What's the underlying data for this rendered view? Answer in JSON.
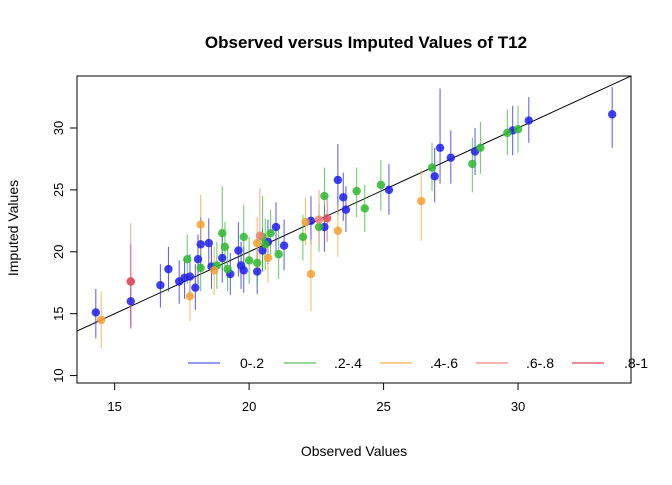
{
  "chart_data": {
    "type": "scatter",
    "title": "Observed versus Imputed Values of T12",
    "xlabel": "Observed Values",
    "ylabel": "Imputed Values",
    "xlim": [
      13.6,
      34.2
    ],
    "ylim": [
      9.4,
      34.2
    ],
    "xticks": [
      15,
      20,
      25,
      30
    ],
    "yticks": [
      10,
      15,
      20,
      25,
      30
    ],
    "reference_line": {
      "type": "identity",
      "slope": 1,
      "intercept": 0
    },
    "legend": {
      "position": "bottom",
      "entries": [
        {
          "label": "0-.2",
          "color": "#5a5af2"
        },
        {
          "label": ".2-.4",
          "color": "#5cc45c"
        },
        {
          "label": ".4-.6",
          "color": "#f7b14a"
        },
        {
          "label": ".6-.8",
          "color": "#f7837a"
        },
        {
          "label": ".8-1",
          "color": "#d9495c"
        }
      ]
    },
    "colors": {
      "g1": "#1f1ff0",
      "g2": "#2eb82e",
      "g3": "#f5a030",
      "g4": "#f28070",
      "g5": "#de4a5e"
    },
    "series": [
      {
        "name": "0-.2",
        "color_key": "g1",
        "points": [
          [
            14.3,
            15.1,
            13.0,
            17.0
          ],
          [
            15.6,
            16.0,
            14.0,
            18.0
          ],
          [
            16.7,
            17.3,
            15.5,
            19.0
          ],
          [
            17.0,
            18.6,
            16.8,
            20.4
          ],
          [
            17.4,
            17.6,
            15.8,
            19.3
          ],
          [
            17.6,
            17.9,
            16.2,
            19.5
          ],
          [
            17.8,
            18.0,
            16.3,
            19.8
          ],
          [
            18.0,
            17.1,
            15.3,
            19.0
          ],
          [
            18.1,
            19.4,
            17.4,
            21.4
          ],
          [
            18.2,
            20.6,
            18.4,
            22.8
          ],
          [
            18.5,
            20.7,
            18.8,
            22.7
          ],
          [
            18.6,
            18.8,
            17.0,
            20.5
          ],
          [
            19.0,
            19.5,
            17.5,
            21.7
          ],
          [
            19.3,
            18.2,
            16.5,
            19.9
          ],
          [
            19.6,
            20.1,
            18.0,
            22.4
          ],
          [
            19.7,
            18.9,
            17.0,
            20.8
          ],
          [
            19.8,
            18.5,
            16.7,
            20.4
          ],
          [
            20.3,
            18.4,
            16.6,
            20.3
          ],
          [
            20.5,
            20.1,
            18.4,
            21.9
          ],
          [
            20.7,
            20.8,
            19.0,
            22.6
          ],
          [
            21.0,
            22.0,
            20.0,
            24.0
          ],
          [
            21.3,
            20.5,
            18.5,
            22.6
          ],
          [
            22.3,
            22.5,
            20.6,
            24.5
          ],
          [
            22.8,
            22.0,
            20.0,
            23.8
          ],
          [
            23.3,
            25.8,
            23.0,
            28.7
          ],
          [
            23.5,
            24.4,
            22.5,
            26.4
          ],
          [
            23.6,
            23.4,
            21.6,
            25.3
          ],
          [
            25.2,
            25.0,
            23.0,
            27.1
          ],
          [
            26.9,
            26.1,
            24.0,
            28.4
          ],
          [
            27.1,
            28.4,
            25.5,
            33.2
          ],
          [
            27.5,
            27.6,
            25.5,
            29.8
          ],
          [
            28.4,
            28.1,
            26.2,
            30.0
          ],
          [
            29.8,
            29.8,
            27.8,
            31.8
          ],
          [
            30.4,
            30.6,
            28.8,
            32.5
          ],
          [
            33.5,
            31.1,
            28.4,
            33.3
          ]
        ]
      },
      {
        "name": ".2-.4",
        "color_key": "g2",
        "points": [
          [
            17.7,
            19.4,
            17.4,
            21.4
          ],
          [
            18.2,
            18.7,
            16.8,
            20.6
          ],
          [
            18.8,
            18.9,
            17.0,
            20.8
          ],
          [
            19.0,
            21.5,
            18.5,
            25.3
          ],
          [
            19.1,
            20.4,
            18.4,
            22.4
          ],
          [
            19.2,
            18.6,
            16.8,
            20.4
          ],
          [
            19.8,
            21.2,
            18.8,
            23.8
          ],
          [
            20.0,
            19.3,
            17.4,
            21.2
          ],
          [
            20.3,
            19.1,
            17.2,
            21.0
          ],
          [
            20.5,
            21.2,
            18.6,
            24.5
          ],
          [
            20.6,
            20.6,
            18.5,
            22.7
          ],
          [
            20.8,
            21.5,
            19.5,
            23.4
          ],
          [
            21.1,
            19.8,
            17.8,
            21.7
          ],
          [
            22.0,
            21.2,
            19.3,
            23.0
          ],
          [
            22.6,
            22.0,
            20.0,
            23.9
          ],
          [
            22.8,
            24.5,
            22.4,
            26.8
          ],
          [
            24.0,
            24.9,
            22.8,
            26.8
          ],
          [
            24.3,
            23.5,
            21.6,
            25.4
          ],
          [
            24.9,
            25.4,
            23.3,
            27.4
          ],
          [
            26.8,
            26.8,
            24.9,
            28.8
          ],
          [
            28.3,
            27.1,
            24.8,
            29.2
          ],
          [
            28.6,
            28.4,
            26.3,
            30.5
          ],
          [
            29.6,
            29.6,
            27.8,
            31.5
          ],
          [
            30.0,
            29.9,
            28.0,
            31.8
          ]
        ]
      },
      {
        "name": ".4-.6",
        "color_key": "g3",
        "points": [
          [
            14.5,
            14.5,
            12.2,
            16.8
          ],
          [
            17.8,
            16.4,
            14.4,
            18.4
          ],
          [
            18.2,
            22.2,
            19.8,
            24.6
          ],
          [
            18.7,
            18.5,
            16.5,
            20.4
          ],
          [
            20.3,
            20.7,
            18.5,
            22.8
          ],
          [
            20.7,
            19.5,
            17.5,
            21.5
          ],
          [
            22.1,
            22.4,
            20.5,
            24.4
          ],
          [
            22.3,
            18.2,
            15.2,
            21.0
          ],
          [
            23.3,
            21.7,
            19.6,
            23.8
          ],
          [
            26.4,
            24.1,
            20.9,
            26.6
          ]
        ]
      },
      {
        "name": ".6-.8",
        "color_key": "g4",
        "points": [
          [
            15.6,
            17.6,
            13.8,
            22.3
          ],
          [
            20.4,
            21.3,
            18.5,
            25.1
          ],
          [
            22.6,
            22.6,
            20.5,
            25.0
          ]
        ]
      },
      {
        "name": ".8-1",
        "color_key": "g5",
        "points": [
          [
            15.6,
            17.6,
            13.8,
            20.6
          ],
          [
            22.9,
            22.7,
            20.8,
            24.5
          ]
        ]
      }
    ]
  }
}
